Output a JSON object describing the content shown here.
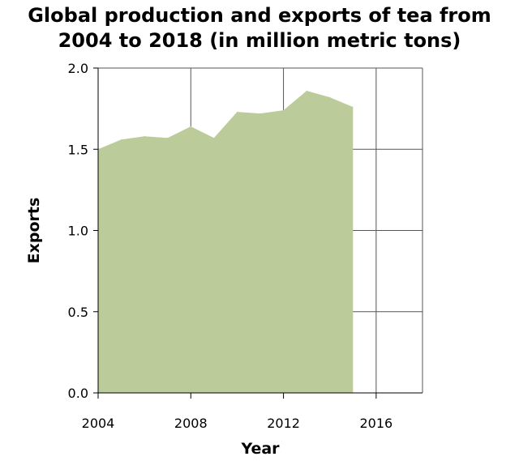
{
  "chart_data": {
    "type": "area",
    "title_lines": [
      "Global production and exports of tea from",
      "2004 to 2018 (in million metric tons)"
    ],
    "xlabel": "Year",
    "ylabel": "Exports",
    "xlim": [
      2004,
      2018
    ],
    "ylim": [
      0,
      2.0
    ],
    "x_ticks": [
      2004,
      2008,
      2012,
      2016
    ],
    "y_ticks": [
      "0.0",
      "0.5",
      "1.0",
      "1.5",
      "2.0"
    ],
    "grid": true,
    "fill_color": "#bccb9a",
    "series": [
      {
        "x": [
          2004,
          2005,
          2006,
          2007,
          2008,
          2009,
          2010,
          2011,
          2012,
          2013,
          2014,
          2015
        ],
        "values": [
          1.5,
          1.56,
          1.58,
          1.57,
          1.64,
          1.57,
          1.73,
          1.72,
          1.74,
          1.86,
          1.82,
          1.76
        ]
      }
    ]
  }
}
